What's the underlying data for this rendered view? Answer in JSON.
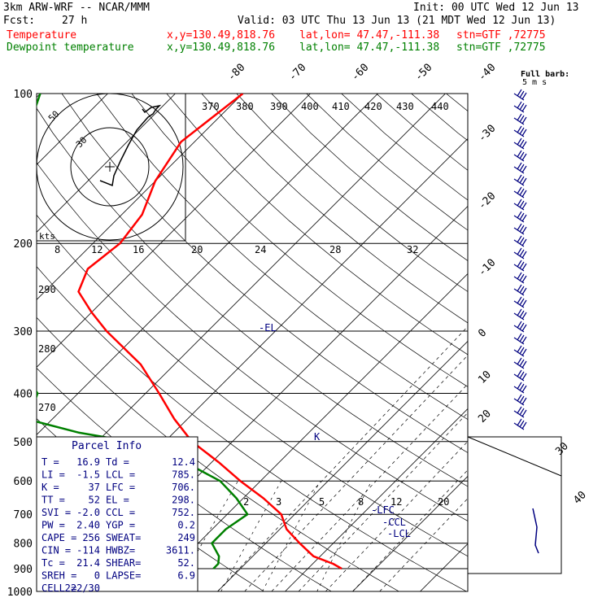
{
  "header": {
    "model": "3km ARW-WRF -- NCAR/MMM",
    "init": "Init: 00 UTC Wed 12 Jun 13",
    "fcst_label": "Fcst:",
    "fcst_value": "27 h",
    "valid": "Valid: 03 UTC Thu 13 Jun 13 (21 MDT Wed 12 Jun 13)",
    "temp_label": "Temperature",
    "dew_label": "Dewpoint temperature",
    "xy": "x,y=130.49,818.76",
    "latlon": "lat,lon= 47.47,-111.38",
    "stn": "stn=GTF ,72775"
  },
  "colors": {
    "temperature": "#ff0000",
    "dewpoint": "#008000",
    "parcel_text": "#000080",
    "wind": "#000080"
  },
  "chart_data": {
    "type": "line",
    "title": "",
    "xlabel": "",
    "ylabel": "",
    "y_axis_scale": "log-pressure",
    "ylim": [
      1000,
      100
    ],
    "pressure_ticks": [
      "100",
      "200",
      "300",
      "400",
      "500",
      "600",
      "700",
      "800",
      "900",
      "1000"
    ],
    "isotherm_ticks": [
      "-80",
      "-70",
      "-60",
      "-50",
      "-40",
      "-30",
      "-20",
      "-10",
      "0",
      "10",
      "20",
      "30",
      "40"
    ],
    "theta_ticks": [
      "370",
      "380",
      "390",
      "400",
      "410",
      "420",
      "430",
      "440"
    ],
    "theta_side_ticks": [
      "290",
      "280",
      "270"
    ],
    "mixing_ratio_ticks": [
      "2",
      "3",
      "5",
      "8",
      "12",
      "20"
    ],
    "hodograph_speed_ticks": [
      "8",
      "12",
      "16",
      "20",
      "24",
      "28",
      "32"
    ],
    "hodograph_units": "kts",
    "hodograph_rings": [
      "50",
      "30"
    ],
    "wind_legend": {
      "line1": "Full barb:",
      "line2": "5 m s"
    },
    "series": [
      {
        "name": "Temperature",
        "color": "#ff0000",
        "points": [
          [
            100,
            -60
          ],
          [
            125,
            -62
          ],
          [
            150,
            -60
          ],
          [
            175,
            -57
          ],
          [
            200,
            -56
          ],
          [
            225,
            -57
          ],
          [
            250,
            -55
          ],
          [
            275,
            -50
          ],
          [
            300,
            -45
          ],
          [
            350,
            -35
          ],
          [
            400,
            -28
          ],
          [
            450,
            -22
          ],
          [
            500,
            -16
          ],
          [
            550,
            -9
          ],
          [
            600,
            -3
          ],
          [
            650,
            3
          ],
          [
            700,
            8
          ],
          [
            750,
            11
          ],
          [
            800,
            15
          ],
          [
            850,
            19
          ],
          [
            880,
            23
          ],
          [
            900,
            25
          ]
        ]
      },
      {
        "name": "Dewpoint temperature",
        "color": "#008000",
        "points": [
          [
            100,
            -90
          ],
          [
            110,
            -88
          ],
          [
            125,
            -85
          ],
          [
            150,
            -83
          ],
          [
            175,
            -80
          ],
          [
            200,
            -75
          ],
          [
            250,
            -68
          ],
          [
            300,
            -60
          ],
          [
            350,
            -53
          ],
          [
            400,
            -46
          ],
          [
            420,
            -45
          ],
          [
            450,
            -44
          ],
          [
            480,
            -34
          ],
          [
            500,
            -25
          ],
          [
            550,
            -14
          ],
          [
            600,
            -6
          ],
          [
            650,
            -1
          ],
          [
            700,
            3
          ],
          [
            750,
            2
          ],
          [
            800,
            2
          ],
          [
            850,
            5
          ],
          [
            880,
            6
          ],
          [
            900,
            6
          ]
        ]
      }
    ],
    "annotations": [
      "-EL",
      "-LFC",
      "-CCL",
      "-LCL",
      "K"
    ]
  },
  "parcel_info": {
    "title": "Parcel Info",
    "rows": [
      [
        "T  =",
        "16.9",
        "Td =",
        "12.4"
      ],
      [
        "LI =",
        "-1.5",
        "LCL =",
        "785."
      ],
      [
        "K  =",
        "37",
        "LFC =",
        "706."
      ],
      [
        "TT =",
        "52",
        "EL =",
        "298."
      ],
      [
        "SVI =",
        "-2.0",
        "CCL =",
        "752."
      ],
      [
        "PW =",
        "2.40",
        "YGP =",
        "0.2"
      ],
      [
        "CAPE =",
        "256",
        "SWEAT=",
        "249"
      ],
      [
        "CIN =",
        "-114",
        "HWBZ=",
        "3611."
      ],
      [
        "Tc =",
        "21.4",
        "SHEAR=",
        "52."
      ],
      [
        "SREH =",
        "0",
        "LAPSE=",
        "6.9"
      ],
      [
        "CELL =",
        "222/30",
        "",
        ""
      ]
    ]
  }
}
